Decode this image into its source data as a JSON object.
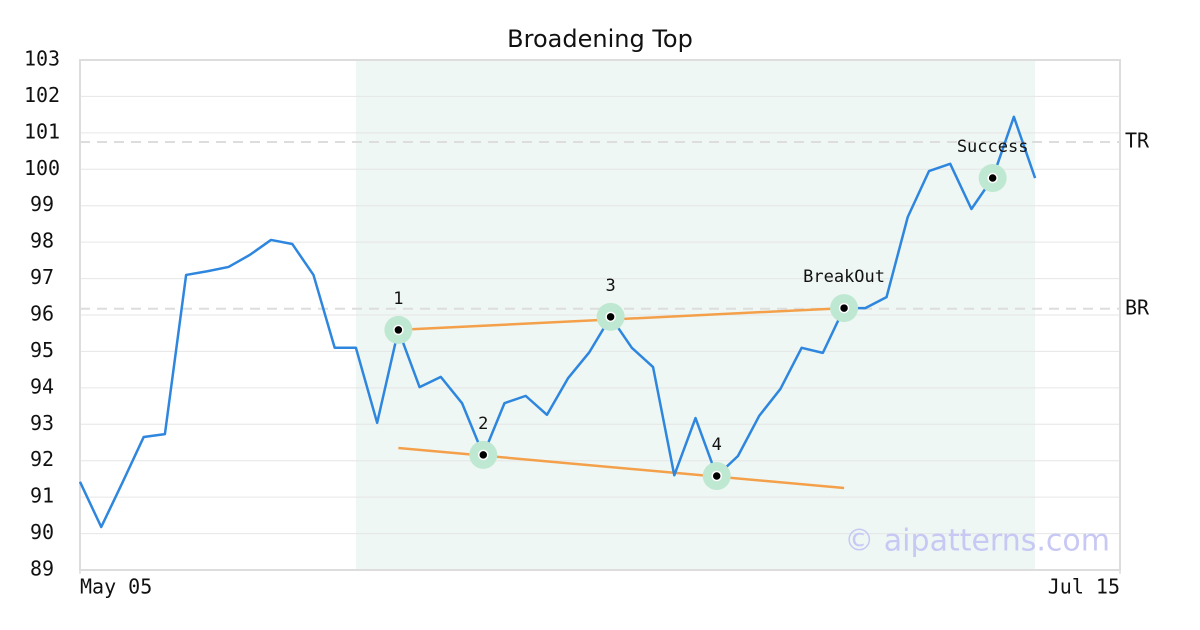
{
  "chart_data": {
    "type": "line",
    "title": "Broadening Top",
    "x": [
      0,
      1,
      2,
      3,
      4,
      5,
      6,
      7,
      8,
      9,
      10,
      11,
      12,
      13,
      14,
      15,
      16,
      17,
      18,
      19,
      20,
      21,
      22,
      23,
      24,
      25,
      26,
      27,
      28,
      29,
      30,
      31,
      32,
      33,
      34,
      35,
      36,
      37,
      38,
      39,
      40,
      41,
      42,
      43,
      44,
      45
    ],
    "values": [
      91.42,
      90.18,
      91.4,
      92.65,
      92.73,
      97.1,
      97.2,
      97.32,
      97.65,
      98.06,
      97.95,
      97.1,
      95.1,
      95.1,
      93.04,
      95.59,
      94.02,
      94.3,
      93.58,
      92.16,
      93.58,
      93.78,
      93.26,
      94.27,
      94.98,
      95.95,
      95.1,
      94.57,
      91.6,
      93.17,
      91.58,
      92.13,
      93.23,
      93.97,
      95.1,
      94.96,
      96.19,
      96.19,
      96.49,
      98.69,
      99.95,
      100.15,
      98.91,
      99.76,
      101.44,
      99.76
    ],
    "color": "#2e86de",
    "xlim": [
      0,
      49
    ],
    "xticks": [
      {
        "value": 0,
        "label": "May 05"
      },
      {
        "value": 49,
        "label": "Jul 15"
      }
    ],
    "ylim": [
      89,
      103
    ],
    "yticks": [
      89,
      90,
      91,
      92,
      93,
      94,
      95,
      96,
      97,
      98,
      99,
      100,
      101,
      102,
      103
    ],
    "grid": true,
    "shaded": {
      "x": [
        13,
        45
      ],
      "color": "#eef7f3"
    },
    "levels": [
      {
        "label": "TR",
        "value": 100.75
      },
      {
        "label": "BR",
        "value": 96.17
      }
    ],
    "trendlines": [
      {
        "x": [
          15,
          36
        ],
        "values": [
          95.59,
          96.19
        ]
      },
      {
        "x": [
          15,
          36
        ],
        "values": [
          92.35,
          91.25
        ]
      }
    ],
    "trend_color": "#f4a04a",
    "points": [
      {
        "label": "1",
        "x": 15,
        "value": 95.59
      },
      {
        "label": "2",
        "x": 19,
        "value": 92.16
      },
      {
        "label": "3",
        "x": 25,
        "value": 95.95
      },
      {
        "label": "4",
        "x": 30,
        "value": 91.58
      },
      {
        "label": "BreakOut",
        "x": 36,
        "value": 96.19
      },
      {
        "label": "Success",
        "x": 43,
        "value": 99.76
      }
    ],
    "watermark": "© aipatterns.com"
  }
}
